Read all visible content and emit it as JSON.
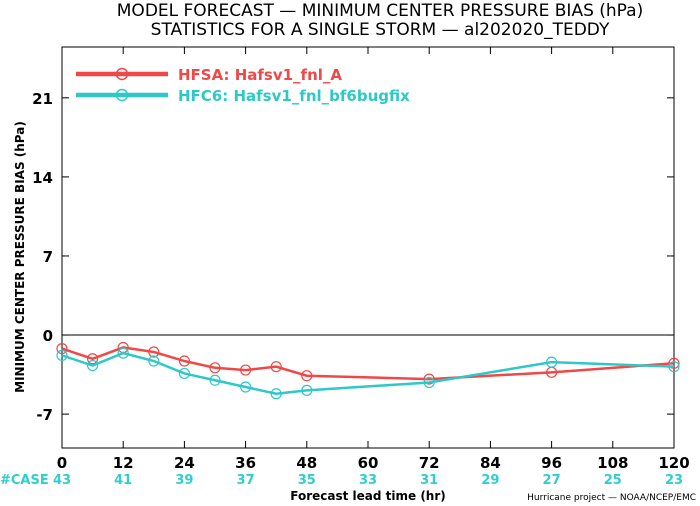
{
  "chart_data": {
    "type": "line",
    "title": "MODEL FORECAST — MINIMUM CENTER PRESSURE BIAS (hPa)",
    "subtitle": "STATISTICS FOR A SINGLE STORM — al202020_TEDDY",
    "xlabel": "Forecast lead time (hr)",
    "ylabel": "MINIMUM CENTER PRESSURE BIAS (hPa)",
    "xlim": [
      0,
      120
    ],
    "ylim": [
      -10,
      25.5
    ],
    "xticks": [
      "0",
      "12",
      "24",
      "36",
      "48",
      "60",
      "72",
      "84",
      "96",
      "108",
      "120"
    ],
    "yticks": [
      "-7",
      "0",
      "7",
      "14",
      "21"
    ],
    "zero_line": true,
    "legend_position": "top-left",
    "series": [
      {
        "name": "HFSA: Hafsv1_fnl_A",
        "color": "#f04848",
        "x": [
          0,
          6,
          12,
          18,
          24,
          30,
          36,
          42,
          48,
          72,
          96,
          120
        ],
        "y": [
          -1.2,
          -2.1,
          -1.1,
          -1.5,
          -2.3,
          -2.9,
          -3.1,
          -2.8,
          -3.6,
          -3.9,
          -3.3,
          -2.5
        ]
      },
      {
        "name": "HFC6: Hafsv1_fnl_bf6bugfix",
        "color": "#2ec8c8",
        "x": [
          0,
          6,
          12,
          18,
          24,
          30,
          36,
          42,
          48,
          72,
          96,
          120
        ],
        "y": [
          -1.8,
          -2.7,
          -1.6,
          -2.3,
          -3.4,
          -4.0,
          -4.6,
          -5.2,
          -4.9,
          -4.2,
          -2.4,
          -2.8
        ]
      }
    ],
    "case_label": "#CASE",
    "case_x": [
      0,
      12,
      24,
      36,
      48,
      60,
      72,
      84,
      96,
      108,
      120
    ],
    "case_counts": [
      "43",
      "41",
      "39",
      "37",
      "35",
      "33",
      "31",
      "29",
      "27",
      "25",
      "23"
    ],
    "credit": "Hurricane project — NOAA/NCEP/EMC"
  }
}
